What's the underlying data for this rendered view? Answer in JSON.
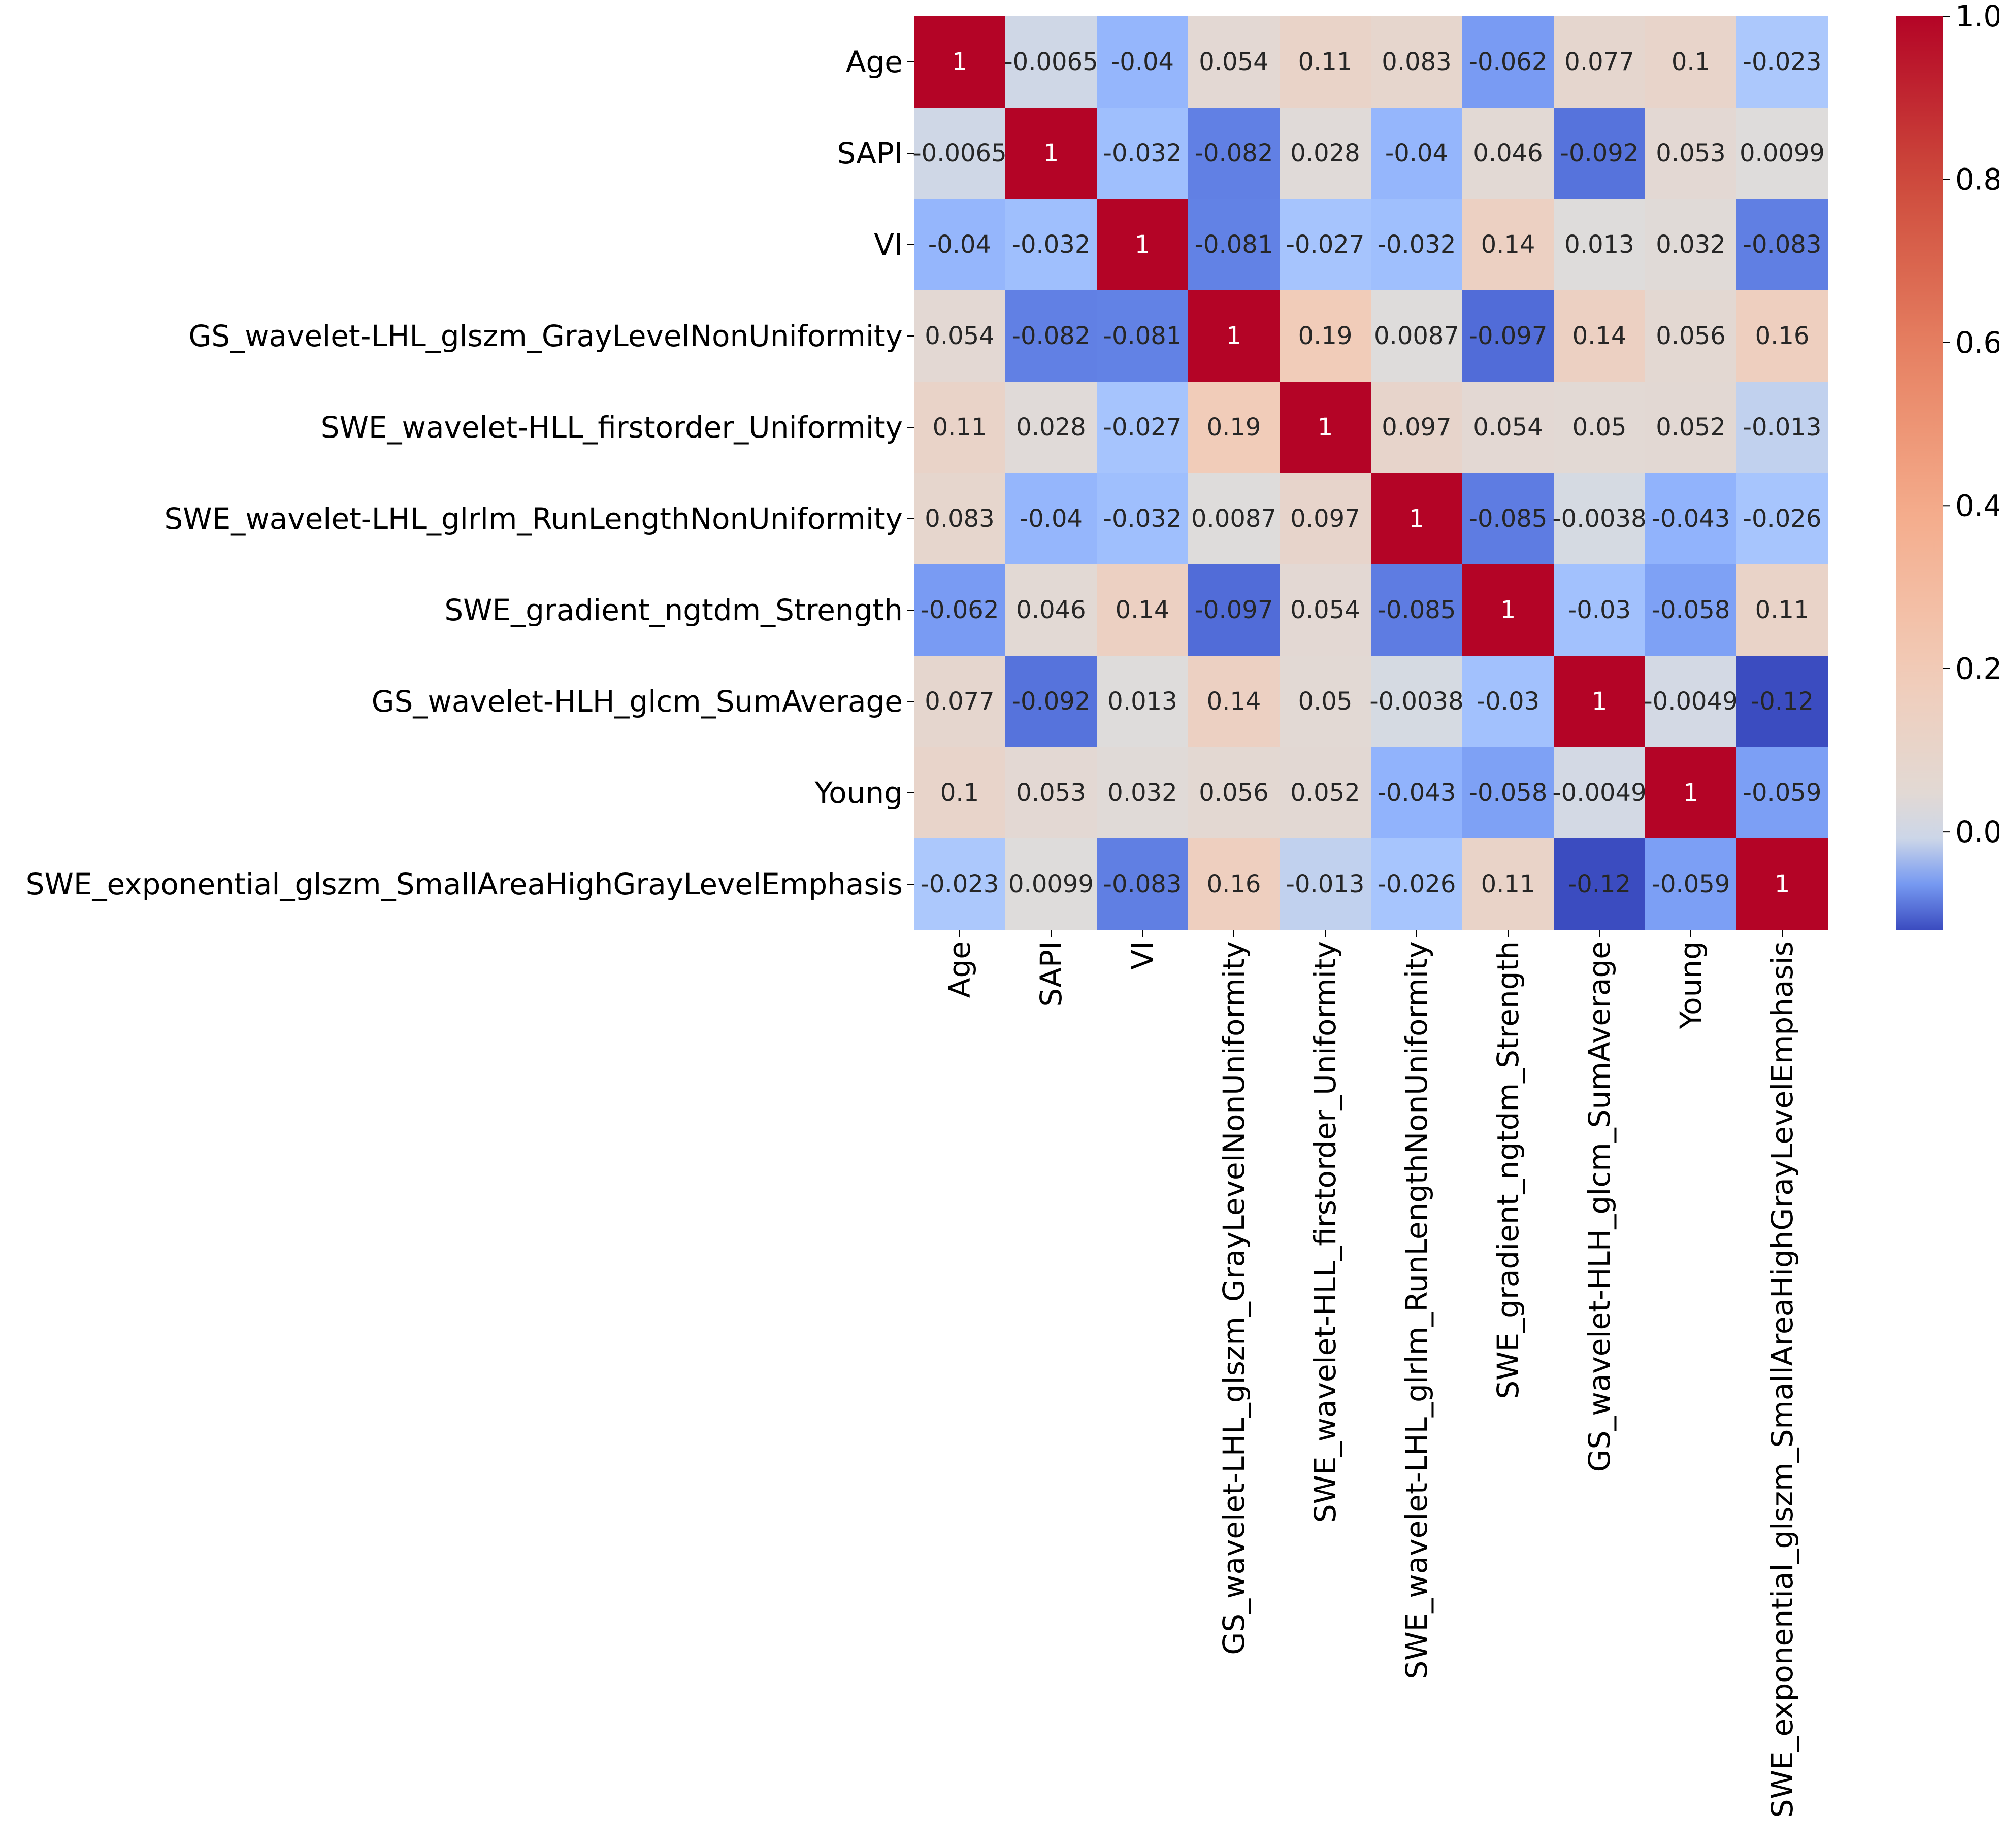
{
  "chart_data": {
    "type": "heatmap",
    "title": "",
    "xlabel": "",
    "ylabel": "",
    "colormap": "coolwarm",
    "colormap_center": 0,
    "colorbar_range": [
      -0.12,
      1.0
    ],
    "colorbar_ticks": [
      "0.0",
      "0.2",
      "0.4",
      "0.6",
      "0.8",
      "1.0"
    ],
    "colorbar_tick_values": [
      0.0,
      0.2,
      0.4,
      0.6,
      0.8,
      1.0
    ],
    "labels": [
      "Age",
      "SAPI",
      "VI",
      "GS_wavelet-LHL_glszm_GrayLevelNonUniformity",
      "SWE_wavelet-HLL_firstorder_Uniformity",
      "SWE_wavelet-LHL_glrlm_RunLengthNonUniformity",
      "SWE_gradient_ngtdm_Strength",
      "GS_wavelet-HLH_glcm_SumAverage",
      "Young",
      "SWE_exponential_glszm_SmallAreaHighGrayLevelEmphasis"
    ],
    "values": [
      [
        1,
        -0.0065,
        -0.04,
        0.054,
        0.11,
        0.083,
        -0.062,
        0.077,
        0.1,
        -0.023
      ],
      [
        -0.0065,
        1,
        -0.032,
        -0.082,
        0.028,
        -0.04,
        0.046,
        -0.092,
        0.053,
        0.0099
      ],
      [
        -0.04,
        -0.032,
        1,
        -0.081,
        -0.027,
        -0.032,
        0.14,
        0.013,
        0.032,
        -0.083
      ],
      [
        0.054,
        -0.082,
        -0.081,
        1,
        0.19,
        0.0087,
        -0.097,
        0.14,
        0.056,
        0.16
      ],
      [
        0.11,
        0.028,
        -0.027,
        0.19,
        1,
        0.097,
        0.054,
        0.05,
        0.052,
        -0.013
      ],
      [
        0.083,
        -0.04,
        -0.032,
        0.0087,
        0.097,
        1,
        -0.085,
        -0.0038,
        -0.043,
        -0.026
      ],
      [
        -0.062,
        0.046,
        0.14,
        -0.097,
        0.054,
        -0.085,
        1,
        -0.03,
        -0.058,
        0.11
      ],
      [
        0.077,
        -0.092,
        0.013,
        0.14,
        0.05,
        -0.0038,
        -0.03,
        1,
        -0.0049,
        -0.12
      ],
      [
        0.1,
        0.053,
        0.032,
        0.056,
        0.052,
        -0.043,
        -0.058,
        -0.0049,
        1,
        -0.059
      ],
      [
        -0.023,
        0.0099,
        -0.083,
        0.16,
        -0.013,
        -0.026,
        0.11,
        -0.12,
        -0.059,
        1
      ]
    ],
    "annotations": [
      [
        "1",
        "-0.0065",
        "-0.04",
        "0.054",
        "0.11",
        "0.083",
        "-0.062",
        "0.077",
        "0.1",
        "-0.023"
      ],
      [
        "-0.0065",
        "1",
        "-0.032",
        "-0.082",
        "0.028",
        "-0.04",
        "0.046",
        "-0.092",
        "0.053",
        "0.0099"
      ],
      [
        "-0.04",
        "-0.032",
        "1",
        "-0.081",
        "-0.027",
        "-0.032",
        "0.14",
        "0.013",
        "0.032",
        "-0.083"
      ],
      [
        "0.054",
        "-0.082",
        "-0.081",
        "1",
        "0.19",
        "0.0087",
        "-0.097",
        "0.14",
        "0.056",
        "0.16"
      ],
      [
        "0.11",
        "0.028",
        "-0.027",
        "0.19",
        "1",
        "0.097",
        "0.054",
        "0.05",
        "0.052",
        "-0.013"
      ],
      [
        "0.083",
        "-0.04",
        "-0.032",
        "0.0087",
        "0.097",
        "1",
        "-0.085",
        "-0.0038",
        "-0.043",
        "-0.026"
      ],
      [
        "-0.062",
        "0.046",
        "0.14",
        "-0.097",
        "0.054",
        "-0.085",
        "1",
        "-0.03",
        "-0.058",
        "0.11"
      ],
      [
        "0.077",
        "-0.092",
        "0.013",
        "0.14",
        "0.05",
        "-0.0038",
        "-0.03",
        "1",
        "-0.0049",
        "-0.12"
      ],
      [
        "0.1",
        "0.053",
        "0.032",
        "0.056",
        "0.052",
        "-0.043",
        "-0.058",
        "-0.0049",
        "1",
        "-0.059"
      ],
      [
        "-0.023",
        "0.0099",
        "-0.083",
        "0.16",
        "-0.013",
        "-0.026",
        "0.11",
        "-0.12",
        "-0.059",
        "1"
      ]
    ],
    "grid": false,
    "legend": "colorbar-right"
  }
}
